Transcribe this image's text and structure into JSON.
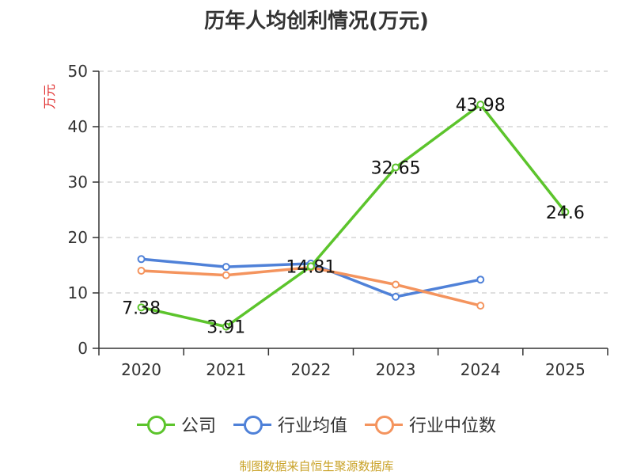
{
  "title": "历年人均创利情况(万元)",
  "source": "制图数据来自恒生聚源数据库",
  "chart_data": {
    "type": "line",
    "title": "历年人均创利情况(万元)",
    "ylabel": "万元",
    "xlabel": "",
    "categories": [
      "2020",
      "2021",
      "2022",
      "2023",
      "2024",
      "2025"
    ],
    "ylim": [
      0,
      50
    ],
    "yticks": [
      0,
      10,
      20,
      30,
      40,
      50
    ],
    "grid": true,
    "legend_position": "bottom",
    "series": [
      {
        "name": "公司",
        "color": "#5cc42c",
        "values": [
          7.38,
          3.91,
          14.81,
          32.65,
          43.98,
          24.6
        ],
        "labels": [
          "7.38",
          "3.91",
          "14.81",
          "32.65",
          "43.98",
          "24.6"
        ]
      },
      {
        "name": "行业均值",
        "color": "#4f81d8",
        "values": [
          16.1,
          14.7,
          15.3,
          9.3,
          12.4,
          null
        ]
      },
      {
        "name": "行业中位数",
        "color": "#f4945e",
        "values": [
          14.0,
          13.2,
          14.6,
          11.5,
          7.7,
          null
        ]
      }
    ]
  }
}
